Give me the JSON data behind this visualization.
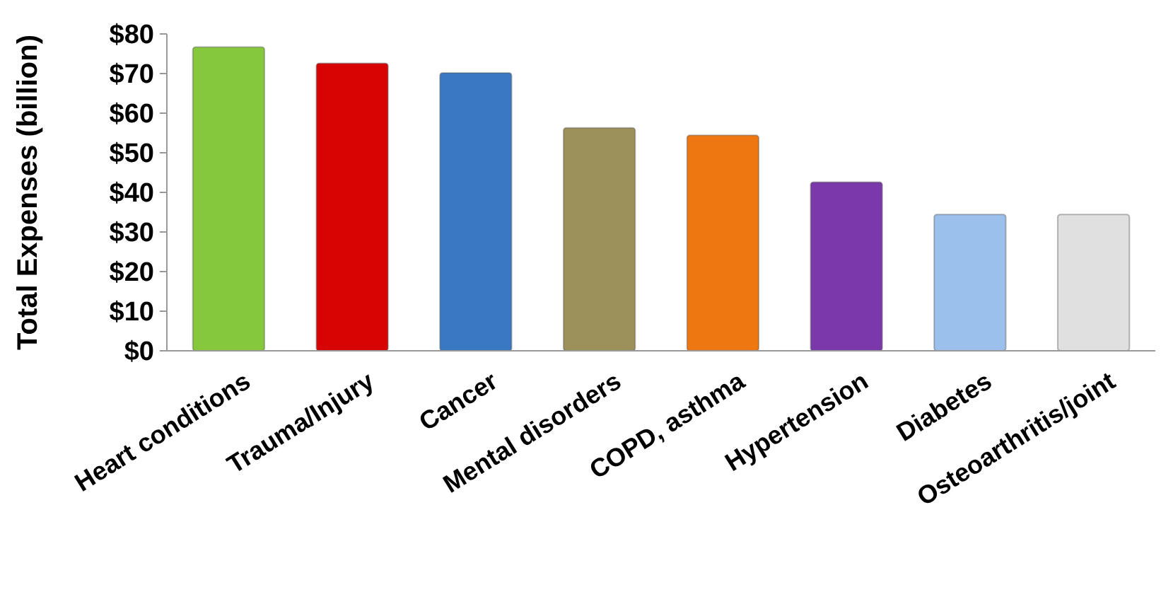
{
  "chart_data": {
    "type": "bar",
    "ylabel": "Total Expenses (billion)",
    "categories": [
      "Heart conditions",
      "Trauma/Injury",
      "Cancer",
      "Mental disorders",
      "COPD, asthma",
      "Hypertension",
      "Diabetes",
      "Osteoarthritis/joint"
    ],
    "values": [
      76.7,
      72.6,
      70.2,
      56.3,
      54.4,
      42.6,
      34.4,
      34.4
    ],
    "colors": [
      "#86c83c",
      "#d80404",
      "#3a78c4",
      "#9c915a",
      "#ee7711",
      "#7a38aa",
      "#9cc0ec",
      "#e0e0e0"
    ],
    "ylim": [
      0,
      80
    ],
    "yticks": [
      {
        "value": 0,
        "label": "$0"
      },
      {
        "value": 10,
        "label": "$10"
      },
      {
        "value": 20,
        "label": "$20"
      },
      {
        "value": 30,
        "label": "$30"
      },
      {
        "value": 40,
        "label": "$40"
      },
      {
        "value": 50,
        "label": "$50"
      },
      {
        "value": 60,
        "label": "$60"
      },
      {
        "value": 70,
        "label": "$70"
      },
      {
        "value": 80,
        "label": "$80"
      }
    ],
    "grid": false
  }
}
